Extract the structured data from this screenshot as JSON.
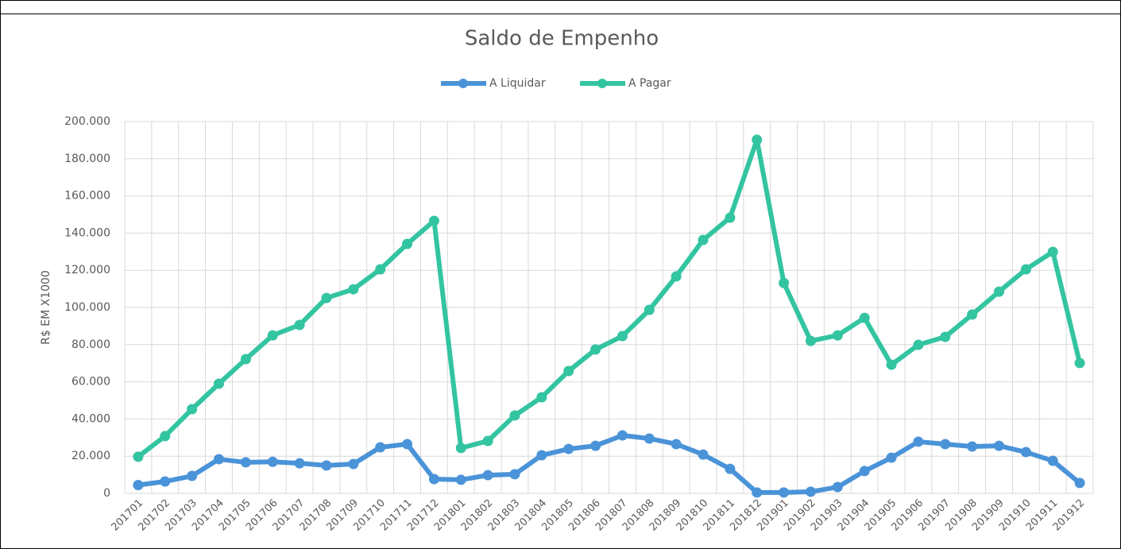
{
  "chart_data": {
    "type": "line",
    "title": "Saldo de Empenho",
    "y_label": "R$ EM X1000",
    "legend": "top",
    "grid": true,
    "categories": [
      "201701",
      "201702",
      "201703",
      "201704",
      "201705",
      "201706",
      "201707",
      "201708",
      "201709",
      "201710",
      "201711",
      "201712",
      "201801",
      "201802",
      "201803",
      "201804",
      "201805",
      "201806",
      "201807",
      "201808",
      "201809",
      "201810",
      "201811",
      "201812",
      "201901",
      "201902",
      "201903",
      "201904",
      "201905",
      "201906",
      "201907",
      "201908",
      "201909",
      "201910",
      "201911",
      "201912"
    ],
    "series": [
      {
        "name": "A Liquidar",
        "color": "#4a93d8",
        "values": [
          4500,
          6400,
          9400,
          18400,
          16700,
          17000,
          16200,
          15000,
          15800,
          24800,
          26500,
          7700,
          7300,
          9800,
          10300,
          20500,
          23900,
          25600,
          31200,
          29500,
          26500,
          20900,
          13200,
          500,
          500,
          900,
          3400,
          12000,
          19200,
          27800,
          26500,
          25200,
          25600,
          22200,
          17500,
          5600
        ]
      },
      {
        "name": "A Pagar",
        "color": "#33c4a1",
        "values": [
          19700,
          30800,
          45300,
          59000,
          72200,
          85000,
          90600,
          105100,
          109800,
          120500,
          134200,
          146600,
          24400,
          28200,
          41900,
          51700,
          65800,
          77400,
          84600,
          98700,
          116700,
          136300,
          148300,
          190200,
          113200,
          82000,
          85000,
          94400,
          69200,
          79900,
          84200,
          96200,
          108500,
          120500,
          129900,
          70100
        ]
      }
    ],
    "ylim": [
      0,
      200000
    ],
    "yticks": [
      0,
      {
        "value": 20000,
        "label": "20.000"
      },
      {
        "value": 40000,
        "label": "40.000"
      },
      {
        "value": 60000,
        "label": "60.000"
      },
      {
        "value": 80000,
        "label": "80.000"
      },
      {
        "value": 100000,
        "label": "100.000"
      },
      {
        "value": 120000,
        "label": "120.000"
      },
      {
        "value": 140000,
        "label": "140.000"
      },
      {
        "value": 160000,
        "label": "160.000"
      },
      {
        "value": 180000,
        "label": "180.000"
      },
      {
        "value": 200000,
        "label": "200.000"
      }
    ]
  }
}
